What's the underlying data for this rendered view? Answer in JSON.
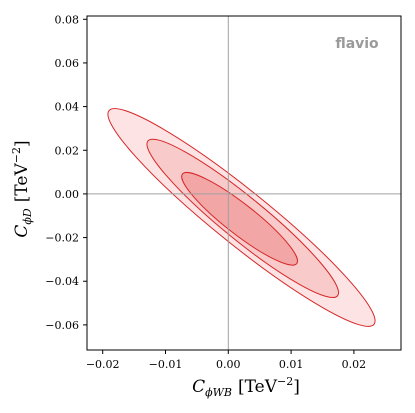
{
  "chart_data": {
    "type": "contour",
    "watermark": "flavio",
    "xlabel_symbol": "C",
    "xlabel_sub": "ϕWB",
    "xlabel_unit": "[TeV",
    "xlabel_exp": "−2",
    "xlabel_close": "]",
    "ylabel_symbol": "C",
    "ylabel_sub": "ϕD",
    "ylabel_unit": "[TeV",
    "ylabel_exp": "−2",
    "ylabel_close": "]",
    "xlim": [
      -0.0225,
      0.0275
    ],
    "ylim": [
      -0.0715,
      0.0815
    ],
    "xticks": [
      -0.02,
      -0.01,
      0.0,
      0.01,
      0.02
    ],
    "xtick_labels": [
      "−0.02",
      "−0.01",
      "0.00",
      "0.01",
      "0.02"
    ],
    "yticks": [
      -0.06,
      -0.04,
      -0.02,
      0.0,
      0.02,
      0.04,
      0.06,
      0.08
    ],
    "ytick_labels": [
      "−0.06",
      "−0.04",
      "−0.02",
      "0.00",
      "0.02",
      "0.04",
      "0.06",
      "0.08"
    ],
    "reference_lines": {
      "x": 0.0,
      "y": 0.0
    },
    "contours": [
      {
        "name": "outer",
        "center": [
          0.0021,
          -0.0108
        ],
        "endpoints": [
          [
            -0.019,
            0.0378
          ],
          [
            0.0232,
            -0.0601
          ]
        ],
        "half_minor": 0.0043,
        "fill": "#fde3e3",
        "stroke": "#d62728"
      },
      {
        "name": "middle",
        "center": [
          0.0023,
          -0.0112
        ],
        "endpoints": [
          [
            -0.0128,
            0.0243
          ],
          [
            0.0174,
            -0.0466
          ]
        ],
        "half_minor": 0.0034,
        "fill": "#f9caca",
        "stroke": "#d62728"
      },
      {
        "name": "inner",
        "center": [
          0.0018,
          -0.0114
        ],
        "endpoints": [
          [
            -0.007,
            0.009
          ],
          [
            0.0112,
            -0.032
          ]
        ],
        "half_minor": 0.0024,
        "fill": "#f3a6a6",
        "stroke": "#d62728"
      }
    ],
    "colors": {
      "axis": "#000000",
      "reference_line": "#a0a0a0",
      "contour_stroke": "#d62728",
      "watermark": "#9a9a9a"
    }
  }
}
